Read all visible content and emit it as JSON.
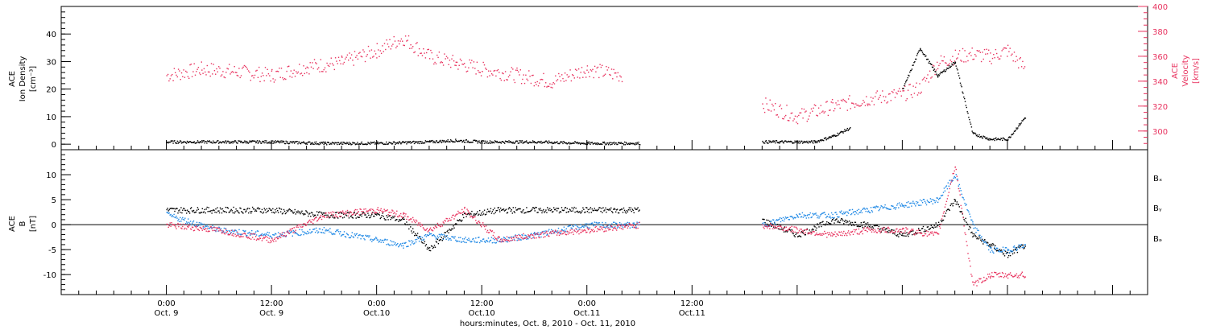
{
  "chart_data": [
    {
      "type": "scatter",
      "panel": "top",
      "ylabel_left": [
        "ACE",
        "Ion Density",
        "[cm⁻³]"
      ],
      "ylabel_right": [
        "ACE",
        "Velocity",
        "[km/s]"
      ],
      "ylim_left": [
        -2,
        50
      ],
      "yticks_left": [
        0,
        10,
        20,
        30,
        40
      ],
      "ylim_right": [
        285,
        400
      ],
      "yticks_right": [
        300,
        320,
        340,
        360,
        380,
        400
      ],
      "colors": {
        "density": "#000000",
        "velocity": "#e8335f"
      },
      "series": [
        {
          "name": "Ion Density",
          "axis": "left",
          "x_hours": [
            0,
            6,
            12,
            18,
            24,
            30,
            33,
            36,
            42,
            48,
            54,
            60,
            66,
            68,
            70,
            72,
            74,
            76,
            78,
            80,
            82,
            84,
            86,
            88,
            90,
            92,
            94,
            96,
            98
          ],
          "values": [
            1,
            1,
            1,
            0.5,
            0.5,
            1,
            1.5,
            1,
            1,
            0.5,
            0.5,
            null,
            null,
            1,
            1,
            1,
            1,
            3,
            6,
            null,
            null,
            20,
            35,
            25,
            30,
            4,
            2,
            2,
            10
          ]
        },
        {
          "name": "Velocity",
          "axis": "right",
          "x_hours": [
            0,
            4,
            8,
            12,
            16,
            20,
            24,
            27,
            30,
            33,
            36,
            40,
            44,
            48,
            52,
            56,
            60,
            64,
            68,
            72,
            76,
            80,
            84,
            86,
            88,
            90,
            92,
            94,
            96,
            98
          ],
          "values": [
            345,
            350,
            348,
            345,
            352,
            355,
            365,
            375,
            360,
            355,
            350,
            345,
            340,
            350,
            345,
            null,
            null,
            null,
            322,
            312,
            320,
            326,
            330,
            335,
            355,
            360,
            362,
            360,
            365,
            350
          ]
        }
      ]
    },
    {
      "type": "scatter",
      "panel": "bottom",
      "ylabel_left": [
        "ACE",
        "B",
        "[nT]"
      ],
      "ylim": [
        -14,
        15
      ],
      "yticks": [
        -10,
        -5,
        0,
        5,
        10
      ],
      "zero_line": true,
      "legend": [
        "Bₓ",
        "Bᵧ",
        "Bₔ"
      ],
      "colors": {
        "Bx": "#000000",
        "By": "#1e88e5",
        "Bz": "#e8335f"
      },
      "series": [
        {
          "name": "Bx",
          "x_hours": [
            0,
            6,
            12,
            18,
            24,
            27,
            30,
            34,
            38,
            42,
            48,
            54,
            60,
            66,
            68,
            72,
            76,
            80,
            84,
            88,
            90,
            92,
            94,
            96,
            98
          ],
          "values": [
            3,
            3,
            3,
            2,
            2,
            1,
            -5,
            2,
            3,
            3,
            3,
            3,
            null,
            null,
            1,
            -2,
            1,
            0,
            -2,
            0,
            5,
            -2,
            -4,
            -6,
            -4
          ]
        },
        {
          "name": "By",
          "x_hours": [
            0,
            6,
            12,
            18,
            24,
            27,
            30,
            34,
            38,
            42,
            48,
            54,
            60,
            66,
            68,
            72,
            76,
            80,
            84,
            88,
            90,
            92,
            94,
            96,
            98
          ],
          "values": [
            2,
            -1,
            -2,
            -1,
            -3,
            -4,
            -2,
            -3,
            -3,
            -2,
            0,
            0,
            null,
            null,
            0,
            2,
            2,
            3,
            4,
            5,
            10,
            0,
            -5,
            -5,
            -4
          ]
        },
        {
          "name": "Bz",
          "x_hours": [
            0,
            6,
            12,
            18,
            24,
            27,
            30,
            34,
            38,
            42,
            48,
            54,
            60,
            66,
            68,
            72,
            76,
            80,
            84,
            88,
            90,
            92,
            94,
            96,
            98
          ],
          "values": [
            0,
            -1,
            -3,
            2,
            3,
            2,
            -1,
            3,
            -3,
            -2,
            -1,
            0,
            null,
            null,
            0,
            -1,
            -2,
            -1,
            -1,
            -2,
            12,
            -12,
            -10,
            -10,
            -10
          ]
        }
      ]
    }
  ],
  "xaxis": {
    "range_hours": [
      -12,
      112
    ],
    "ticks": [
      {
        "h": 0,
        "time": "0:00",
        "date": "Oct. 9"
      },
      {
        "h": 12,
        "time": "12:00",
        "date": "Oct. 9"
      },
      {
        "h": 24,
        "time": "0:00",
        "date": "Oct.10"
      },
      {
        "h": 36,
        "time": "12:00",
        "date": "Oct.10"
      },
      {
        "h": 48,
        "time": "0:00",
        "date": "Oct.11"
      },
      {
        "h": 60,
        "time": "12:00",
        "date": "Oct.11"
      }
    ],
    "label": "hours:minutes, Oct. 8, 2010 - Oct. 11, 2010"
  }
}
